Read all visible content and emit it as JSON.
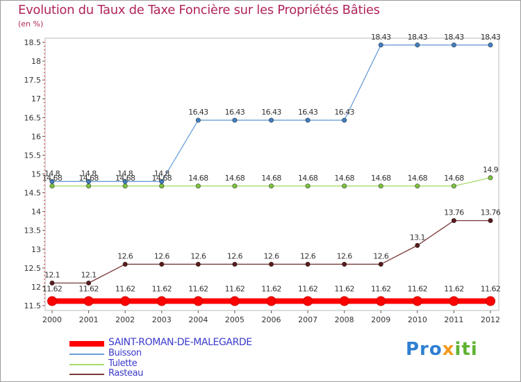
{
  "chart_data": {
    "type": "line",
    "title": "Evolution du Taux de Taxe Foncière sur les Propriétés Bâties",
    "ylabel": "(en %)",
    "xlabel": "",
    "x": [
      "2000",
      "2001",
      "2002",
      "2003",
      "2004",
      "2005",
      "2006",
      "2007",
      "2008",
      "2009",
      "2010",
      "2011",
      "2012"
    ],
    "ylim": [
      11.5,
      18.5
    ],
    "yticks": [
      "11.5",
      "12",
      "12.5",
      "13",
      "13.5",
      "14",
      "14.5",
      "15",
      "15.5",
      "16",
      "16.5",
      "17",
      "17.5",
      "18",
      "18.5"
    ],
    "legend_position": "bottom-left",
    "series": [
      {
        "name": "SAINT-ROMAN-DE-MALEGARDE",
        "color": "#ff0000",
        "highlight": true,
        "values": [
          11.62,
          11.62,
          11.62,
          11.62,
          11.62,
          11.62,
          11.62,
          11.62,
          11.62,
          11.62,
          11.62,
          11.62,
          11.62
        ],
        "labels": [
          "11.62",
          "11.62",
          "11.62",
          "11.62",
          "11.62",
          "11.62",
          "11.62",
          "11.62",
          "11.62",
          "11.62",
          "11.62",
          "11.62",
          "11.62"
        ]
      },
      {
        "name": "Buisson",
        "color": "#6a9fd6",
        "marker": "#3f7fc4",
        "values": [
          14.8,
          14.8,
          14.8,
          14.8,
          16.43,
          16.43,
          16.43,
          16.43,
          16.43,
          18.43,
          18.43,
          18.43,
          18.43
        ],
        "labels": [
          "14.8",
          "14.8",
          "14.8",
          "14.8",
          "16.43",
          "16.43",
          "16.43",
          "16.43",
          "16.43",
          "18.43",
          "18.43",
          "18.43",
          "18.43"
        ]
      },
      {
        "name": "Tulette",
        "color": "#a6dc6a",
        "marker": "#7cc23c",
        "values": [
          14.68,
          14.68,
          14.68,
          14.68,
          14.68,
          14.68,
          14.68,
          14.68,
          14.68,
          14.68,
          14.68,
          14.68,
          14.9
        ],
        "labels": [
          "14.68",
          "14.68",
          "14.68",
          "14.68",
          "14.68",
          "14.68",
          "14.68",
          "14.68",
          "14.68",
          "14.68",
          "14.68",
          "14.68",
          "14.9"
        ]
      },
      {
        "name": "Rasteau",
        "color": "#7a3838",
        "marker": "#5a1a1a",
        "values": [
          12.1,
          12.1,
          12.6,
          12.6,
          12.6,
          12.6,
          12.6,
          12.6,
          12.6,
          12.6,
          13.1,
          13.76,
          13.76
        ],
        "labels": [
          "12.1",
          "12.1",
          "12.6",
          "12.6",
          "12.6",
          "12.6",
          "12.6",
          "12.6",
          "12.6",
          "12.6",
          "13.1",
          "13.76",
          "13.76"
        ]
      }
    ]
  },
  "logo": {
    "p1": "Pro",
    "p2": "x",
    "p3": "iti"
  }
}
